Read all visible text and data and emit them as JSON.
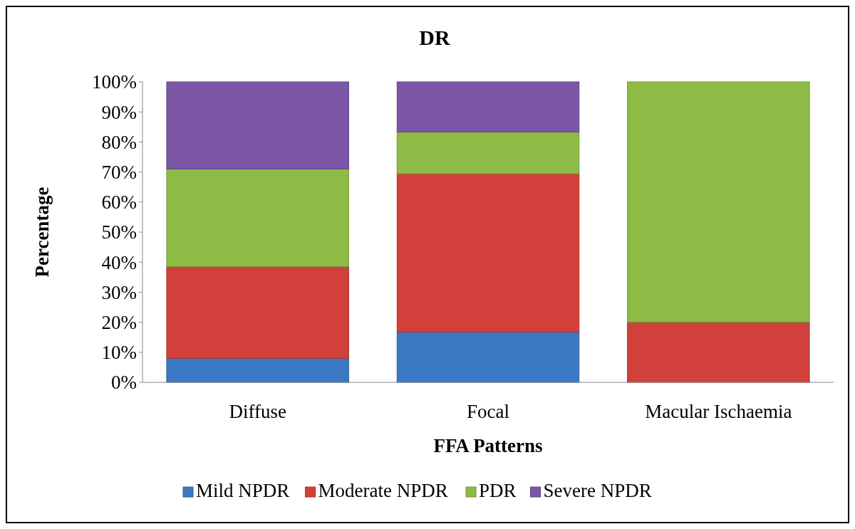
{
  "chart_data": {
    "type": "bar",
    "stacked": true,
    "title": "DR",
    "xlabel": "FFA Patterns",
    "ylabel": "Percentage",
    "categories": [
      "Diffuse",
      "Focal",
      "Macular Ischaemia"
    ],
    "series": [
      {
        "name": "Mild NPDR",
        "color": "#3b78c3",
        "values": [
          8,
          16.7,
          0
        ]
      },
      {
        "name": "Moderate NPDR",
        "color": "#d2403b",
        "values": [
          30.5,
          52.7,
          20
        ]
      },
      {
        "name": "PDR",
        "color": "#8dbb45",
        "values": [
          32.5,
          13.9,
          80
        ]
      },
      {
        "name": "Severe NPDR",
        "color": "#7b56a6",
        "values": [
          29,
          16.7,
          0
        ]
      }
    ],
    "ylim": [
      0,
      100
    ],
    "yticks": [
      {
        "value": 0,
        "label": "0%"
      },
      {
        "value": 10,
        "label": "10%"
      },
      {
        "value": 20,
        "label": "20%"
      },
      {
        "value": 30,
        "label": "30%"
      },
      {
        "value": 40,
        "label": "40%"
      },
      {
        "value": 50,
        "label": "50%"
      },
      {
        "value": 60,
        "label": "60%"
      },
      {
        "value": 70,
        "label": "70%"
      },
      {
        "value": 80,
        "label": "80%"
      },
      {
        "value": 90,
        "label": "90%"
      },
      {
        "value": 100,
        "label": "100%"
      }
    ],
    "grid": false,
    "legend": "bottom"
  }
}
